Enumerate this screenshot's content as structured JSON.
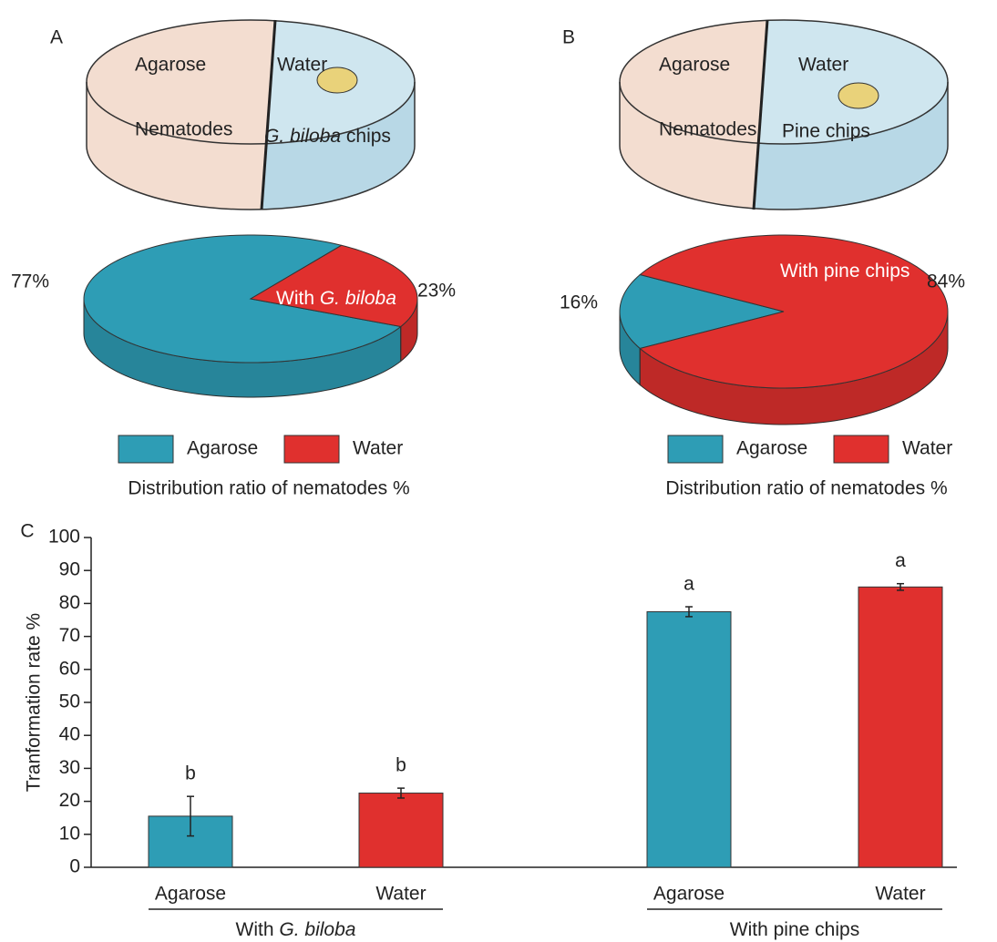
{
  "chart_data": [
    {
      "type": "pie",
      "panel": "A",
      "title": "Distribution ratio of nematodes %",
      "categories": [
        "Agarose",
        "Water"
      ],
      "values": [
        77,
        23
      ],
      "value_labels": [
        "77%",
        "23%"
      ],
      "colors": [
        "#2e9db5",
        "#e0302e"
      ],
      "annotation": [
        {
          "text": "With "
        },
        {
          "text": "G. biloba",
          "italic": true
        }
      ],
      "dish_labels": [
        "Agarose",
        "Water",
        "Nematodes",
        [
          {
            "text": "G. biloba",
            "italic": true
          },
          {
            "text": " chips"
          }
        ]
      ]
    },
    {
      "type": "pie",
      "panel": "B",
      "title": "Distribution ratio of nematodes %",
      "categories": [
        "Agarose",
        "Water"
      ],
      "values": [
        16,
        84
      ],
      "value_labels": [
        "16%",
        "84%"
      ],
      "colors": [
        "#2e9db5",
        "#e0302e"
      ],
      "annotation": [
        {
          "text": "With pine chips"
        }
      ],
      "dish_labels": [
        "Agarose",
        "Water",
        "Nematodes",
        "Pine chips"
      ]
    },
    {
      "type": "bar",
      "panel": "C",
      "ylabel": "Tranformation rate %",
      "ylim": [
        0,
        100
      ],
      "yticks": [
        0,
        10,
        20,
        30,
        40,
        50,
        60,
        70,
        80,
        90,
        100
      ],
      "colors": [
        "#2e9db5",
        "#e0302e"
      ],
      "groups": [
        {
          "label": [
            {
              "text": "With "
            },
            {
              "text": "G. biloba",
              "italic": true
            }
          ],
          "categories": [
            "Agarose",
            "Water"
          ],
          "values": [
            15.5,
            22.5
          ],
          "errors": [
            6,
            1.5
          ],
          "annotations": [
            "b",
            "b"
          ]
        },
        {
          "label": [
            {
              "text": "With pine chips"
            }
          ],
          "categories": [
            "Agarose",
            "Water"
          ],
          "values": [
            77.5,
            85
          ],
          "errors": [
            1.5,
            1
          ],
          "annotations": [
            "a",
            "a"
          ]
        }
      ]
    }
  ]
}
